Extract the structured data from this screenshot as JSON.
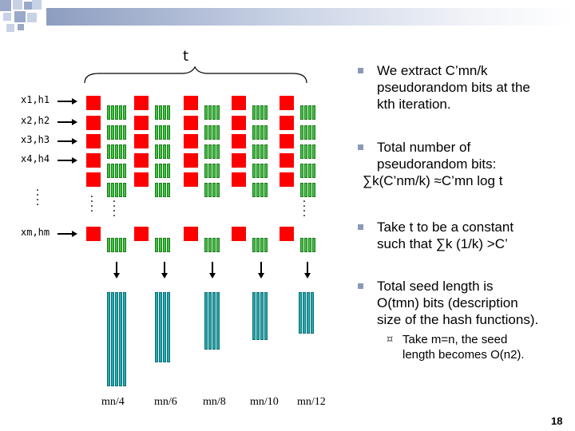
{
  "slide": {
    "t_label": "t",
    "page_number": "18",
    "x_labels": [
      "x1,h1",
      "x2,h2",
      "x3,h3",
      "x4,h4",
      "xm,hm"
    ],
    "mn_labels": [
      "mn/4",
      "mn/6",
      "mn/8",
      "mn/10",
      "mn/12"
    ],
    "bullets": [
      {
        "lines": [
          "We extract C’mn/k",
          "pseudorandom bits at the",
          "kth iteration."
        ]
      },
      {
        "lines": [
          "Total number of",
          "pseudorandom bits:",
          "∑k(C’nm/k) ≈C’mn log t"
        ]
      },
      {
        "lines": [
          "Take t to be a constant",
          "such that    ∑k (1/k) >C’"
        ]
      },
      {
        "lines": [
          "Total seed length is",
          "O(tmn) bits (description",
          "size of the hash functions)."
        ]
      }
    ],
    "sub_bullet": {
      "lines": [
        "Take m=n, the seed",
        "length becomes O(n2)."
      ]
    },
    "colors": {
      "red": "#ff0000",
      "green": "#3cc43c",
      "cyan": "#22aab0",
      "bullet": "#8a9ab8"
    }
  }
}
